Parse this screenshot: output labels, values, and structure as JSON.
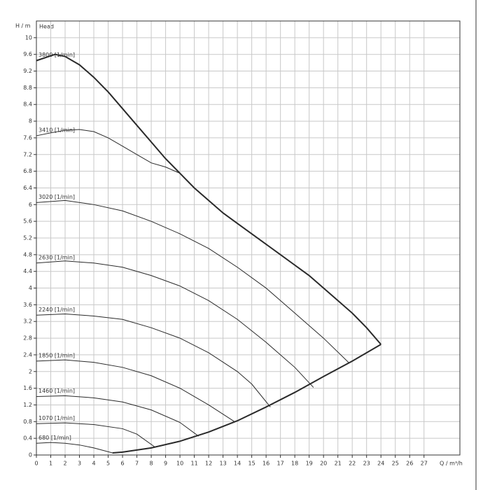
{
  "chart_data": {
    "type": "line",
    "y_label": "H / m",
    "y_title": "Head",
    "x_label": "Q / m³/h",
    "xlim": [
      0,
      29.5
    ],
    "ylim": [
      0,
      10.4
    ],
    "xticks": [
      0,
      1,
      2,
      3,
      4,
      5,
      6,
      7,
      8,
      9,
      10,
      11,
      12,
      13,
      14,
      15,
      16,
      17,
      18,
      19,
      20,
      21,
      22,
      23,
      24,
      25,
      26,
      27
    ],
    "yticks": [
      0,
      0.4,
      0.8,
      1.2,
      1.6,
      2,
      2.4,
      2.8,
      3.2,
      3.6,
      4,
      4.4,
      4.8,
      5.2,
      5.6,
      6,
      6.4,
      6.8,
      7.2,
      7.6,
      8,
      8.4,
      8.8,
      9.2,
      9.6,
      10
    ],
    "grid": true,
    "max_curve": {
      "color": "#2a2a2a",
      "x": [
        0,
        1.3,
        2,
        3,
        4,
        5,
        6,
        7,
        8,
        9,
        10,
        11,
        12,
        13,
        14,
        15,
        16,
        17,
        18,
        19,
        20,
        21,
        22,
        23,
        24
      ],
      "values": [
        9.45,
        9.6,
        9.55,
        9.35,
        9.05,
        8.7,
        8.3,
        7.9,
        7.5,
        7.1,
        6.75,
        6.4,
        6.1,
        5.8,
        5.55,
        5.3,
        5.05,
        4.8,
        4.55,
        4.3,
        4.0,
        3.7,
        3.4,
        3.05,
        2.65
      ]
    },
    "min_curve": {
      "color": "#2a2a2a",
      "x": [
        5.3,
        6,
        8,
        10,
        12,
        14,
        16,
        18,
        20,
        22,
        24
      ],
      "values": [
        0.05,
        0.07,
        0.17,
        0.33,
        0.55,
        0.82,
        1.15,
        1.5,
        1.88,
        2.25,
        2.65
      ]
    },
    "series": [
      {
        "name": "3800 [1/min]",
        "color": "#2a2a2a",
        "x": [
          0
        ],
        "values": [
          9.45
        ]
      },
      {
        "name": "3410 [1/min]",
        "color": "#2a2a2a",
        "x": [
          0,
          1,
          2,
          3,
          4,
          5,
          6,
          7,
          8,
          9,
          10
        ],
        "values": [
          7.65,
          7.72,
          7.78,
          7.8,
          7.75,
          7.6,
          7.4,
          7.2,
          7.0,
          6.9,
          6.75
        ]
      },
      {
        "name": "3020 [1/min]",
        "color": "#2a2a2a",
        "x": [
          0,
          2,
          4,
          6,
          8,
          10,
          12,
          14,
          16,
          18,
          20,
          21.8
        ],
        "values": [
          6.05,
          6.1,
          6.0,
          5.85,
          5.6,
          5.3,
          4.95,
          4.5,
          4.0,
          3.4,
          2.8,
          2.2
        ]
      },
      {
        "name": "2630 [1/min]",
        "color": "#2a2a2a",
        "x": [
          0,
          2,
          4,
          6,
          8,
          10,
          12,
          14,
          16,
          18,
          19.3
        ],
        "values": [
          4.6,
          4.65,
          4.6,
          4.5,
          4.3,
          4.05,
          3.7,
          3.25,
          2.7,
          2.1,
          1.62
        ]
      },
      {
        "name": "2240 [1/min]",
        "color": "#2a2a2a",
        "x": [
          0,
          2,
          4,
          6,
          8,
          10,
          12,
          14,
          15,
          16.3
        ],
        "values": [
          3.35,
          3.38,
          3.33,
          3.25,
          3.05,
          2.8,
          2.45,
          2.0,
          1.7,
          1.15
        ]
      },
      {
        "name": "1850 [1/min]",
        "color": "#2a2a2a",
        "x": [
          0,
          2,
          4,
          6,
          8,
          10,
          12,
          13.8
        ],
        "values": [
          2.25,
          2.28,
          2.22,
          2.1,
          1.9,
          1.6,
          1.2,
          0.8
        ]
      },
      {
        "name": "1460 [1/min]",
        "color": "#2a2a2a",
        "x": [
          0,
          2,
          4,
          6,
          8,
          10,
          11.3
        ],
        "values": [
          1.4,
          1.42,
          1.37,
          1.27,
          1.08,
          0.78,
          0.45
        ]
      },
      {
        "name": "1070 [1/min]",
        "color": "#2a2a2a",
        "x": [
          0,
          2,
          4,
          6,
          7,
          8.3
        ],
        "values": [
          0.75,
          0.77,
          0.73,
          0.63,
          0.5,
          0.18
        ]
      },
      {
        "name": "680 [1/min]",
        "color": "#2a2a2a",
        "x": [
          0,
          1,
          2,
          3,
          4,
          5.3
        ],
        "values": [
          0.28,
          0.3,
          0.28,
          0.24,
          0.17,
          0.05
        ]
      }
    ]
  }
}
